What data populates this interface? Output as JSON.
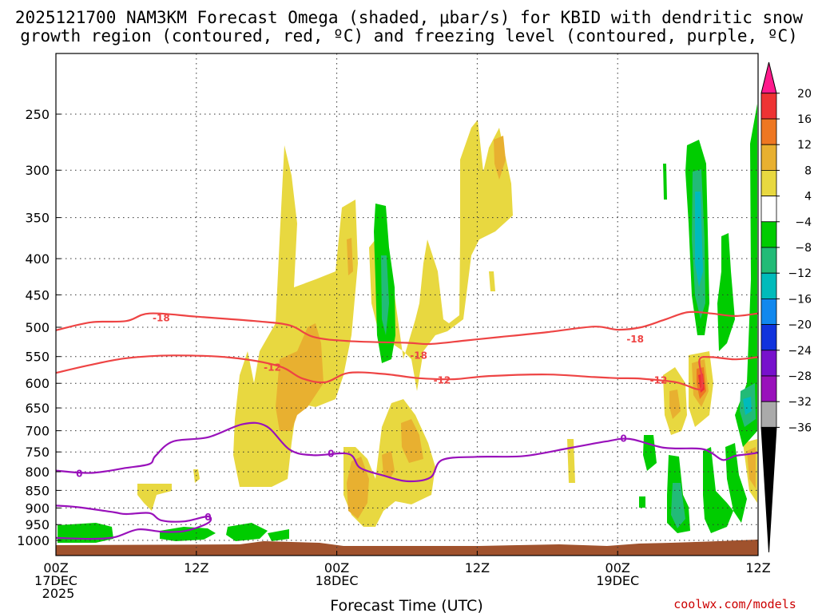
{
  "title_line1": "2025121700 NAM3KM Forecast Omega (shaded, μbar/s) for KBID with dendritic snow",
  "title_line2": "growth region (contoured, red, ºC) and freezing level (contoured, purple, ºC)",
  "credit": "coolwx.com/models",
  "colors": {
    "dgz": "#ee4444",
    "freezing": "#9911bb",
    "ground": "#a0522d",
    "credit": "#cc0000",
    "gridline": "#333333"
  },
  "chart_data": {
    "type": "heatmap",
    "xlabel": "Forecast Time (UTC)",
    "x_range_hours": [
      0,
      60
    ],
    "x_ticks": [
      {
        "hour": 0,
        "lines": [
          "00Z",
          "17DEC",
          "2025"
        ]
      },
      {
        "hour": 12,
        "lines": [
          "12Z"
        ]
      },
      {
        "hour": 24,
        "lines": [
          "00Z",
          "18DEC"
        ]
      },
      {
        "hour": 36,
        "lines": [
          "12Z"
        ]
      },
      {
        "hour": 48,
        "lines": [
          "00Z",
          "19DEC"
        ]
      },
      {
        "hour": 60,
        "lines": [
          "12Z"
        ]
      }
    ],
    "y_axis": "pressure (hPa), inverted",
    "y_ticks": [
      250,
      300,
      350,
      400,
      450,
      500,
      550,
      600,
      650,
      700,
      750,
      800,
      850,
      900,
      950,
      1000
    ],
    "colorbar": {
      "levels": [
        20,
        16,
        12,
        8,
        4,
        -4,
        -8,
        -12,
        -16,
        -20,
        -24,
        -28,
        -32,
        -36
      ],
      "colors": [
        "#ff1a8c",
        "#ee3333",
        "#ee7722",
        "#e8b030",
        "#e8d840",
        "#ffffff",
        "#00cc00",
        "#22bb77",
        "#00bbbb",
        "#1188ee",
        "#1133dd",
        "#7711cc",
        "#9911bb",
        "#aaaaaa",
        "#000000"
      ]
    },
    "contours": [
      {
        "label": "-18",
        "color": "#ee4444",
        "label_points": [
          [
            9,
            485
          ],
          [
            31,
            548
          ],
          [
            49.5,
            520
          ]
        ],
        "points": [
          [
            0,
            505
          ],
          [
            3,
            492
          ],
          [
            6,
            490
          ],
          [
            8,
            478
          ],
          [
            12,
            483
          ],
          [
            17,
            490
          ],
          [
            20,
            497
          ],
          [
            22,
            516
          ],
          [
            25,
            523
          ],
          [
            30,
            526
          ],
          [
            32,
            528
          ],
          [
            35,
            522
          ],
          [
            38,
            516
          ],
          [
            42,
            508
          ],
          [
            46,
            499
          ],
          [
            48,
            504
          ],
          [
            50,
            500
          ],
          [
            52,
            488
          ],
          [
            54,
            476
          ],
          [
            56,
            478
          ],
          [
            58,
            482
          ],
          [
            60,
            478
          ]
        ]
      },
      {
        "label": "-12",
        "color": "#ee4444",
        "label_points": [
          [
            18.5,
            570
          ],
          [
            33,
            594
          ],
          [
            51.5,
            594
          ]
        ],
        "points": [
          [
            0,
            580
          ],
          [
            3,
            565
          ],
          [
            6,
            553
          ],
          [
            10,
            548
          ],
          [
            15,
            552
          ],
          [
            19,
            567
          ],
          [
            21,
            590
          ],
          [
            23,
            598
          ],
          [
            25,
            580
          ],
          [
            28,
            582
          ],
          [
            31,
            590
          ],
          [
            34,
            592
          ],
          [
            37,
            586
          ],
          [
            42,
            583
          ],
          [
            46,
            588
          ],
          [
            48,
            590
          ],
          [
            50,
            591
          ],
          [
            53,
            598
          ],
          [
            55,
            612
          ],
          [
            55.2,
            590
          ],
          [
            55,
            555
          ],
          [
            56,
            551
          ],
          [
            58,
            555
          ],
          [
            60,
            551
          ]
        ]
      },
      {
        "label": "0",
        "color": "#9911bb",
        "label_points": [
          [
            2,
            805
          ],
          [
            23.5,
            755
          ],
          [
            48.5,
            718
          ]
        ],
        "points": [
          [
            0,
            797
          ],
          [
            3,
            803
          ],
          [
            6,
            790
          ],
          [
            8,
            780
          ],
          [
            8.5,
            760
          ],
          [
            10,
            725
          ],
          [
            13,
            715
          ],
          [
            16,
            685
          ],
          [
            18,
            690
          ],
          [
            20,
            745
          ],
          [
            22,
            758
          ],
          [
            25,
            755
          ],
          [
            26,
            790
          ],
          [
            28,
            810
          ],
          [
            30,
            825
          ],
          [
            32,
            815
          ],
          [
            33,
            770
          ],
          [
            36,
            762
          ],
          [
            40,
            760
          ],
          [
            44,
            740
          ],
          [
            47,
            725
          ],
          [
            49,
            719
          ],
          [
            52,
            740
          ],
          [
            55,
            742
          ],
          [
            56,
            752
          ],
          [
            57,
            770
          ],
          [
            58,
            760
          ],
          [
            59,
            756
          ],
          [
            60,
            752
          ]
        ]
      },
      {
        "label": "0",
        "color": "#9911bb",
        "label_points": [
          [
            13,
            927
          ]
        ],
        "points": [
          [
            0,
            893
          ],
          [
            2,
            898
          ],
          [
            5,
            913
          ],
          [
            6,
            918
          ],
          [
            8,
            915
          ],
          [
            9,
            937
          ],
          [
            11,
            940
          ],
          [
            13,
            925
          ],
          [
            13,
            945
          ],
          [
            11,
            970
          ],
          [
            9,
            972
          ],
          [
            7,
            965
          ],
          [
            5,
            990
          ],
          [
            3,
            995
          ],
          [
            0,
            992
          ]
        ]
      }
    ]
  }
}
